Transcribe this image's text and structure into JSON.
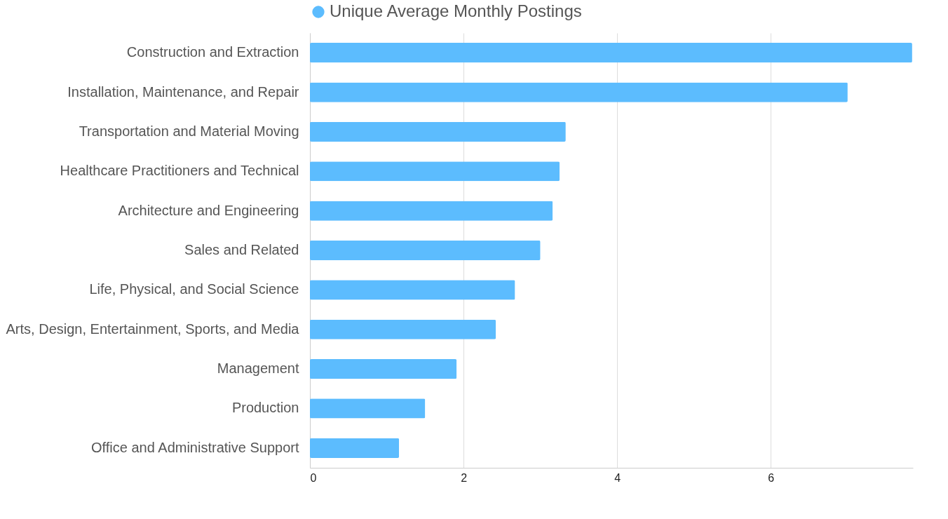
{
  "chart_data": {
    "type": "bar",
    "orientation": "horizontal",
    "categories": [
      "Construction and Extraction",
      "Installation, Maintenance, and Repair",
      "Transportation and Material Moving",
      "Healthcare Practitioners and Technical",
      "Architecture and Engineering",
      "Sales and Related",
      "Life, Physical, and Social Science",
      "Arts, Design, Entertainment, Sports, and Media",
      "Management",
      "Production",
      "Office and Administrative Support"
    ],
    "series": [
      {
        "name": "Unique Average Monthly Postings",
        "color": "#5cbcfe",
        "values": [
          7.84,
          7.0,
          3.33,
          3.25,
          3.16,
          3.0,
          2.67,
          2.42,
          1.91,
          1.5,
          1.16
        ]
      }
    ],
    "xlim": [
      0,
      7.85
    ],
    "xticks": [
      0,
      2,
      4,
      6
    ],
    "grid": "x",
    "legend": "top",
    "marker": "circle"
  }
}
